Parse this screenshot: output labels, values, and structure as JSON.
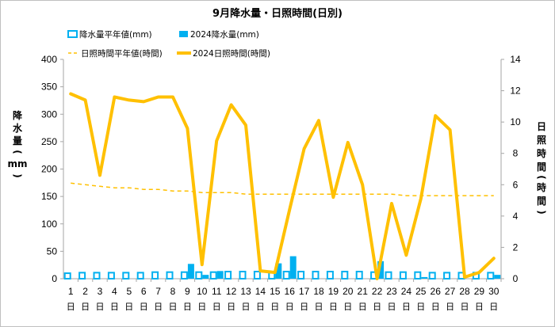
{
  "chart_data": {
    "type": "bar+line",
    "title": "9月降水量・日照時間(日別)",
    "x": [
      "1",
      "2",
      "3",
      "4",
      "5",
      "6",
      "7",
      "8",
      "9",
      "10",
      "11",
      "12",
      "13",
      "14",
      "15",
      "16",
      "17",
      "18",
      "19",
      "20",
      "21",
      "22",
      "23",
      "24",
      "25",
      "26",
      "27",
      "28",
      "29",
      "30"
    ],
    "x_unit": "日",
    "left_axis": {
      "label": [
        "降",
        "水",
        "量",
        "(",
        "mm",
        ")"
      ],
      "ylim": [
        0,
        400
      ],
      "ticks": [
        0,
        50,
        100,
        150,
        200,
        250,
        300,
        350,
        400
      ]
    },
    "right_axis": {
      "label": [
        "日",
        "照",
        "時",
        "間",
        "(",
        "時",
        "間",
        ")"
      ],
      "ylim": [
        0,
        14
      ],
      "ticks": [
        0,
        2,
        4,
        6,
        8,
        10,
        12,
        14
      ]
    },
    "series": [
      {
        "name": "降水量平年値(mm)",
        "kind": "bar-outline",
        "axis": "left",
        "color": "#00b0f0",
        "values": [
          10,
          11,
          11,
          11,
          11,
          11,
          12,
          12,
          12,
          12,
          12,
          13,
          13,
          13,
          13,
          13,
          13,
          13,
          13,
          13,
          13,
          12,
          12,
          12,
          12,
          11,
          11,
          11,
          11,
          11
        ]
      },
      {
        "name": "2024降水量(mm)",
        "kind": "bar",
        "axis": "left",
        "color": "#00b0f0",
        "values": [
          0,
          0,
          0,
          0,
          0,
          0,
          0,
          0,
          27,
          7,
          14,
          0,
          0,
          0,
          28,
          41,
          0,
          0,
          0,
          0,
          0,
          32,
          0,
          0,
          3,
          0,
          0,
          0,
          0,
          7
        ]
      },
      {
        "name": "日照時間平年値(時間)",
        "kind": "dashed-line",
        "axis": "right",
        "color": "#ffc000",
        "values": [
          6.1,
          6.0,
          5.9,
          5.8,
          5.8,
          5.7,
          5.7,
          5.6,
          5.6,
          5.5,
          5.5,
          5.5,
          5.4,
          5.4,
          5.4,
          5.4,
          5.4,
          5.4,
          5.4,
          5.4,
          5.4,
          5.4,
          5.4,
          5.3,
          5.3,
          5.3,
          5.3,
          5.3,
          5.3,
          5.3
        ]
      },
      {
        "name": "2024日照時間(時間)",
        "kind": "line",
        "axis": "right",
        "color": "#ffc000",
        "values": [
          11.8,
          11.4,
          6.6,
          11.6,
          11.4,
          11.3,
          11.6,
          11.6,
          9.6,
          0.9,
          8.8,
          11.1,
          9.8,
          0.5,
          0.4,
          4.4,
          8.3,
          10.1,
          5.2,
          8.7,
          6.0,
          0.0,
          4.8,
          1.5,
          5.1,
          10.4,
          9.5,
          0.1,
          0.4,
          1.3
        ]
      }
    ],
    "legend_placement": "top-left",
    "grid": false
  }
}
